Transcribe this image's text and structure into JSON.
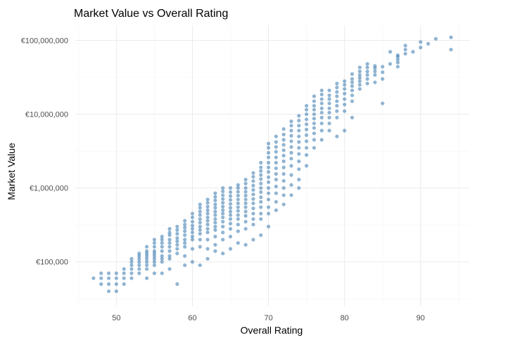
{
  "chart_data": {
    "type": "scatter",
    "title": "Market Value vs Overall Rating",
    "xlabel": "Overall Rating",
    "ylabel": "Market Value",
    "x_ticks": [
      50,
      60,
      70,
      80,
      90
    ],
    "y_ticks": [
      {
        "value": 100000,
        "label": "€100,000"
      },
      {
        "value": 1000000,
        "label": "€1,000,000"
      },
      {
        "value": 10000000,
        "label": "€10,000,000"
      },
      {
        "value": 100000000,
        "label": "€100,000,000"
      }
    ],
    "xlim": [
      44.6,
      96.4
    ],
    "ylim": [
      25000,
      160000000
    ],
    "y_scale": "log10",
    "grid": true,
    "point_color": "#4682b4",
    "points": [
      [
        47,
        60000
      ],
      [
        48,
        50000
      ],
      [
        48,
        60000
      ],
      [
        48,
        70000
      ],
      [
        49,
        40000
      ],
      [
        49,
        50000
      ],
      [
        49,
        60000
      ],
      [
        49,
        70000
      ],
      [
        50,
        40000
      ],
      [
        50,
        50000
      ],
      [
        50,
        60000
      ],
      [
        50,
        70000
      ],
      [
        51,
        50000
      ],
      [
        51,
        60000
      ],
      [
        51,
        70000
      ],
      [
        51,
        80000
      ],
      [
        52,
        60000
      ],
      [
        52,
        70000
      ],
      [
        52,
        80000
      ],
      [
        52,
        90000
      ],
      [
        52,
        100000
      ],
      [
        52,
        110000
      ],
      [
        53,
        70000
      ],
      [
        53,
        80000
      ],
      [
        53,
        90000
      ],
      [
        53,
        100000
      ],
      [
        53,
        110000
      ],
      [
        53,
        120000
      ],
      [
        53,
        130000
      ],
      [
        54,
        60000
      ],
      [
        54,
        80000
      ],
      [
        54,
        90000
      ],
      [
        54,
        100000
      ],
      [
        54,
        110000
      ],
      [
        54,
        120000
      ],
      [
        54,
        130000
      ],
      [
        54,
        140000
      ],
      [
        54,
        160000
      ],
      [
        55,
        70000
      ],
      [
        55,
        90000
      ],
      [
        55,
        100000
      ],
      [
        55,
        110000
      ],
      [
        55,
        120000
      ],
      [
        55,
        130000
      ],
      [
        55,
        140000
      ],
      [
        55,
        160000
      ],
      [
        55,
        180000
      ],
      [
        55,
        200000
      ],
      [
        56,
        70000
      ],
      [
        56,
        100000
      ],
      [
        56,
        110000
      ],
      [
        56,
        120000
      ],
      [
        56,
        140000
      ],
      [
        56,
        160000
      ],
      [
        56,
        180000
      ],
      [
        56,
        200000
      ],
      [
        56,
        220000
      ],
      [
        57,
        80000
      ],
      [
        57,
        110000
      ],
      [
        57,
        120000
      ],
      [
        57,
        140000
      ],
      [
        57,
        160000
      ],
      [
        57,
        180000
      ],
      [
        57,
        200000
      ],
      [
        57,
        230000
      ],
      [
        57,
        250000
      ],
      [
        57,
        280000
      ],
      [
        58,
        50000
      ],
      [
        58,
        130000
      ],
      [
        58,
        150000
      ],
      [
        58,
        170000
      ],
      [
        58,
        190000
      ],
      [
        58,
        210000
      ],
      [
        58,
        240000
      ],
      [
        58,
        270000
      ],
      [
        58,
        300000
      ],
      [
        59,
        90000
      ],
      [
        59,
        120000
      ],
      [
        59,
        160000
      ],
      [
        59,
        180000
      ],
      [
        59,
        200000
      ],
      [
        59,
        230000
      ],
      [
        59,
        260000
      ],
      [
        59,
        290000
      ],
      [
        59,
        320000
      ],
      [
        59,
        360000
      ],
      [
        60,
        100000
      ],
      [
        60,
        150000
      ],
      [
        60,
        200000
      ],
      [
        60,
        220000
      ],
      [
        60,
        250000
      ],
      [
        60,
        280000
      ],
      [
        60,
        310000
      ],
      [
        60,
        350000
      ],
      [
        60,
        400000
      ],
      [
        60,
        450000
      ],
      [
        61,
        90000
      ],
      [
        61,
        160000
      ],
      [
        61,
        200000
      ],
      [
        61,
        240000
      ],
      [
        61,
        270000
      ],
      [
        61,
        300000
      ],
      [
        61,
        340000
      ],
      [
        61,
        380000
      ],
      [
        61,
        430000
      ],
      [
        61,
        480000
      ],
      [
        61,
        540000
      ],
      [
        61,
        600000
      ],
      [
        62,
        110000
      ],
      [
        62,
        150000
      ],
      [
        62,
        200000
      ],
      [
        62,
        250000
      ],
      [
        62,
        280000
      ],
      [
        62,
        320000
      ],
      [
        62,
        360000
      ],
      [
        62,
        400000
      ],
      [
        62,
        450000
      ],
      [
        62,
        500000
      ],
      [
        62,
        560000
      ],
      [
        62,
        630000
      ],
      [
        62,
        700000
      ],
      [
        63,
        140000
      ],
      [
        63,
        170000
      ],
      [
        63,
        220000
      ],
      [
        63,
        270000
      ],
      [
        63,
        300000
      ],
      [
        63,
        340000
      ],
      [
        63,
        380000
      ],
      [
        63,
        430000
      ],
      [
        63,
        480000
      ],
      [
        63,
        540000
      ],
      [
        63,
        600000
      ],
      [
        63,
        680000
      ],
      [
        63,
        760000
      ],
      [
        63,
        850000
      ],
      [
        64,
        130000
      ],
      [
        64,
        200000
      ],
      [
        64,
        250000
      ],
      [
        64,
        300000
      ],
      [
        64,
        350000
      ],
      [
        64,
        400000
      ],
      [
        64,
        450000
      ],
      [
        64,
        500000
      ],
      [
        64,
        560000
      ],
      [
        64,
        630000
      ],
      [
        64,
        710000
      ],
      [
        64,
        800000
      ],
      [
        64,
        900000
      ],
      [
        64,
        1000000
      ],
      [
        65,
        150000
      ],
      [
        65,
        220000
      ],
      [
        65,
        280000
      ],
      [
        65,
        330000
      ],
      [
        65,
        380000
      ],
      [
        65,
        430000
      ],
      [
        65,
        480000
      ],
      [
        65,
        540000
      ],
      [
        65,
        610000
      ],
      [
        65,
        690000
      ],
      [
        65,
        780000
      ],
      [
        65,
        880000
      ],
      [
        65,
        1000000
      ],
      [
        66,
        180000
      ],
      [
        66,
        260000
      ],
      [
        66,
        320000
      ],
      [
        66,
        380000
      ],
      [
        66,
        430000
      ],
      [
        66,
        490000
      ],
      [
        66,
        550000
      ],
      [
        66,
        620000
      ],
      [
        66,
        700000
      ],
      [
        66,
        790000
      ],
      [
        66,
        890000
      ],
      [
        66,
        1000000
      ],
      [
        66,
        1100000
      ],
      [
        67,
        170000
      ],
      [
        67,
        280000
      ],
      [
        67,
        350000
      ],
      [
        67,
        420000
      ],
      [
        67,
        480000
      ],
      [
        67,
        550000
      ],
      [
        67,
        620000
      ],
      [
        67,
        700000
      ],
      [
        67,
        790000
      ],
      [
        67,
        890000
      ],
      [
        67,
        1000000
      ],
      [
        67,
        1150000
      ],
      [
        67,
        1300000
      ],
      [
        68,
        200000
      ],
      [
        68,
        320000
      ],
      [
        68,
        380000
      ],
      [
        68,
        450000
      ],
      [
        68,
        530000
      ],
      [
        68,
        620000
      ],
      [
        68,
        710000
      ],
      [
        68,
        820000
      ],
      [
        68,
        940000
      ],
      [
        68,
        1080000
      ],
      [
        68,
        1240000
      ],
      [
        68,
        1420000
      ],
      [
        68,
        1600000
      ],
      [
        69,
        230000
      ],
      [
        69,
        380000
      ],
      [
        69,
        450000
      ],
      [
        69,
        550000
      ],
      [
        69,
        650000
      ],
      [
        69,
        750000
      ],
      [
        69,
        880000
      ],
      [
        69,
        1000000
      ],
      [
        69,
        1150000
      ],
      [
        69,
        1320000
      ],
      [
        69,
        1500000
      ],
      [
        69,
        1700000
      ],
      [
        69,
        1900000
      ],
      [
        69,
        2200000
      ],
      [
        70,
        300000
      ],
      [
        70,
        450000
      ],
      [
        70,
        550000
      ],
      [
        70,
        700000
      ],
      [
        70,
        850000
      ],
      [
        70,
        1000000
      ],
      [
        70,
        1200000
      ],
      [
        70,
        1400000
      ],
      [
        70,
        1650000
      ],
      [
        70,
        1900000
      ],
      [
        70,
        2200000
      ],
      [
        70,
        2600000
      ],
      [
        70,
        3000000
      ],
      [
        70,
        3500000
      ],
      [
        70,
        4000000
      ],
      [
        71,
        500000
      ],
      [
        71,
        650000
      ],
      [
        71,
        850000
      ],
      [
        71,
        1050000
      ],
      [
        71,
        1300000
      ],
      [
        71,
        1550000
      ],
      [
        71,
        1850000
      ],
      [
        71,
        2200000
      ],
      [
        71,
        2600000
      ],
      [
        71,
        3100000
      ],
      [
        71,
        3600000
      ],
      [
        71,
        4200000
      ],
      [
        71,
        5000000
      ],
      [
        72,
        600000
      ],
      [
        72,
        800000
      ],
      [
        72,
        1000000
      ],
      [
        72,
        1250000
      ],
      [
        72,
        1550000
      ],
      [
        72,
        1900000
      ],
      [
        72,
        2300000
      ],
      [
        72,
        2750000
      ],
      [
        72,
        3250000
      ],
      [
        72,
        3850000
      ],
      [
        72,
        4500000
      ],
      [
        72,
        5300000
      ],
      [
        72,
        6300000
      ],
      [
        73,
        800000
      ],
      [
        73,
        1100000
      ],
      [
        73,
        1500000
      ],
      [
        73,
        2000000
      ],
      [
        73,
        2500000
      ],
      [
        73,
        3000000
      ],
      [
        73,
        3600000
      ],
      [
        73,
        4300000
      ],
      [
        73,
        5100000
      ],
      [
        73,
        6000000
      ],
      [
        73,
        7000000
      ],
      [
        73,
        8000000
      ],
      [
        74,
        1000000
      ],
      [
        74,
        1300000
      ],
      [
        74,
        1800000
      ],
      [
        74,
        2300000
      ],
      [
        74,
        2900000
      ],
      [
        74,
        3500000
      ],
      [
        74,
        4200000
      ],
      [
        74,
        5000000
      ],
      [
        74,
        6000000
      ],
      [
        74,
        7000000
      ],
      [
        74,
        8200000
      ],
      [
        74,
        9500000
      ],
      [
        75,
        2000000
      ],
      [
        75,
        2800000
      ],
      [
        75,
        3500000
      ],
      [
        75,
        4300000
      ],
      [
        75,
        5200000
      ],
      [
        75,
        6200000
      ],
      [
        75,
        7300000
      ],
      [
        75,
        8500000
      ],
      [
        75,
        10000000
      ],
      [
        75,
        11500000
      ],
      [
        75,
        13000000
      ],
      [
        76,
        3500000
      ],
      [
        76,
        4500000
      ],
      [
        76,
        5500000
      ],
      [
        76,
        6500000
      ],
      [
        76,
        7500000
      ],
      [
        76,
        8700000
      ],
      [
        76,
        10000000
      ],
      [
        76,
        11500000
      ],
      [
        76,
        13000000
      ],
      [
        76,
        15000000
      ],
      [
        76,
        17500000
      ],
      [
        77,
        4500000
      ],
      [
        77,
        6000000
      ],
      [
        77,
        7500000
      ],
      [
        77,
        9000000
      ],
      [
        77,
        10500000
      ],
      [
        77,
        12000000
      ],
      [
        77,
        14000000
      ],
      [
        77,
        16000000
      ],
      [
        77,
        18500000
      ],
      [
        77,
        21000000
      ],
      [
        78,
        6000000
      ],
      [
        78,
        7500000
      ],
      [
        78,
        9000000
      ],
      [
        78,
        10500000
      ],
      [
        78,
        12000000
      ],
      [
        78,
        14000000
      ],
      [
        78,
        16000000
      ],
      [
        78,
        18000000
      ],
      [
        78,
        21000000
      ],
      [
        79,
        5000000
      ],
      [
        79,
        9000000
      ],
      [
        79,
        11000000
      ],
      [
        79,
        13000000
      ],
      [
        79,
        15000000
      ],
      [
        79,
        17500000
      ],
      [
        79,
        20000000
      ],
      [
        79,
        23000000
      ],
      [
        79,
        26000000
      ],
      [
        80,
        6000000
      ],
      [
        80,
        11000000
      ],
      [
        80,
        13500000
      ],
      [
        80,
        16000000
      ],
      [
        80,
        19000000
      ],
      [
        80,
        22000000
      ],
      [
        80,
        25000000
      ],
      [
        80,
        28000000
      ],
      [
        81,
        9000000
      ],
      [
        81,
        15000000
      ],
      [
        81,
        18000000
      ],
      [
        81,
        21000000
      ],
      [
        81,
        24000000
      ],
      [
        81,
        27000000
      ],
      [
        81,
        30000000
      ],
      [
        81,
        35000000
      ],
      [
        82,
        22000000
      ],
      [
        82,
        25000000
      ],
      [
        82,
        28000000
      ],
      [
        82,
        31000000
      ],
      [
        82,
        34000000
      ],
      [
        82,
        38000000
      ],
      [
        82,
        43000000
      ],
      [
        83,
        26000000
      ],
      [
        83,
        30000000
      ],
      [
        83,
        34000000
      ],
      [
        83,
        38000000
      ],
      [
        83,
        43000000
      ],
      [
        83,
        48000000
      ],
      [
        84,
        27000000
      ],
      [
        84,
        34000000
      ],
      [
        84,
        38000000
      ],
      [
        84,
        42000000
      ],
      [
        84,
        45000000
      ],
      [
        85,
        14000000
      ],
      [
        85,
        30000000
      ],
      [
        85,
        37000000
      ],
      [
        85,
        44000000
      ],
      [
        86,
        48000000
      ],
      [
        86,
        70000000
      ],
      [
        87,
        44000000
      ],
      [
        87,
        50000000
      ],
      [
        87,
        55000000
      ],
      [
        87,
        60000000
      ],
      [
        87,
        63000000
      ],
      [
        88,
        66000000
      ],
      [
        88,
        75000000
      ],
      [
        88,
        85000000
      ],
      [
        89,
        70000000
      ],
      [
        90,
        80000000
      ],
      [
        90,
        95000000
      ],
      [
        91,
        90000000
      ],
      [
        92,
        105000000
      ],
      [
        94,
        75000000
      ],
      [
        94,
        110000000
      ]
    ]
  }
}
